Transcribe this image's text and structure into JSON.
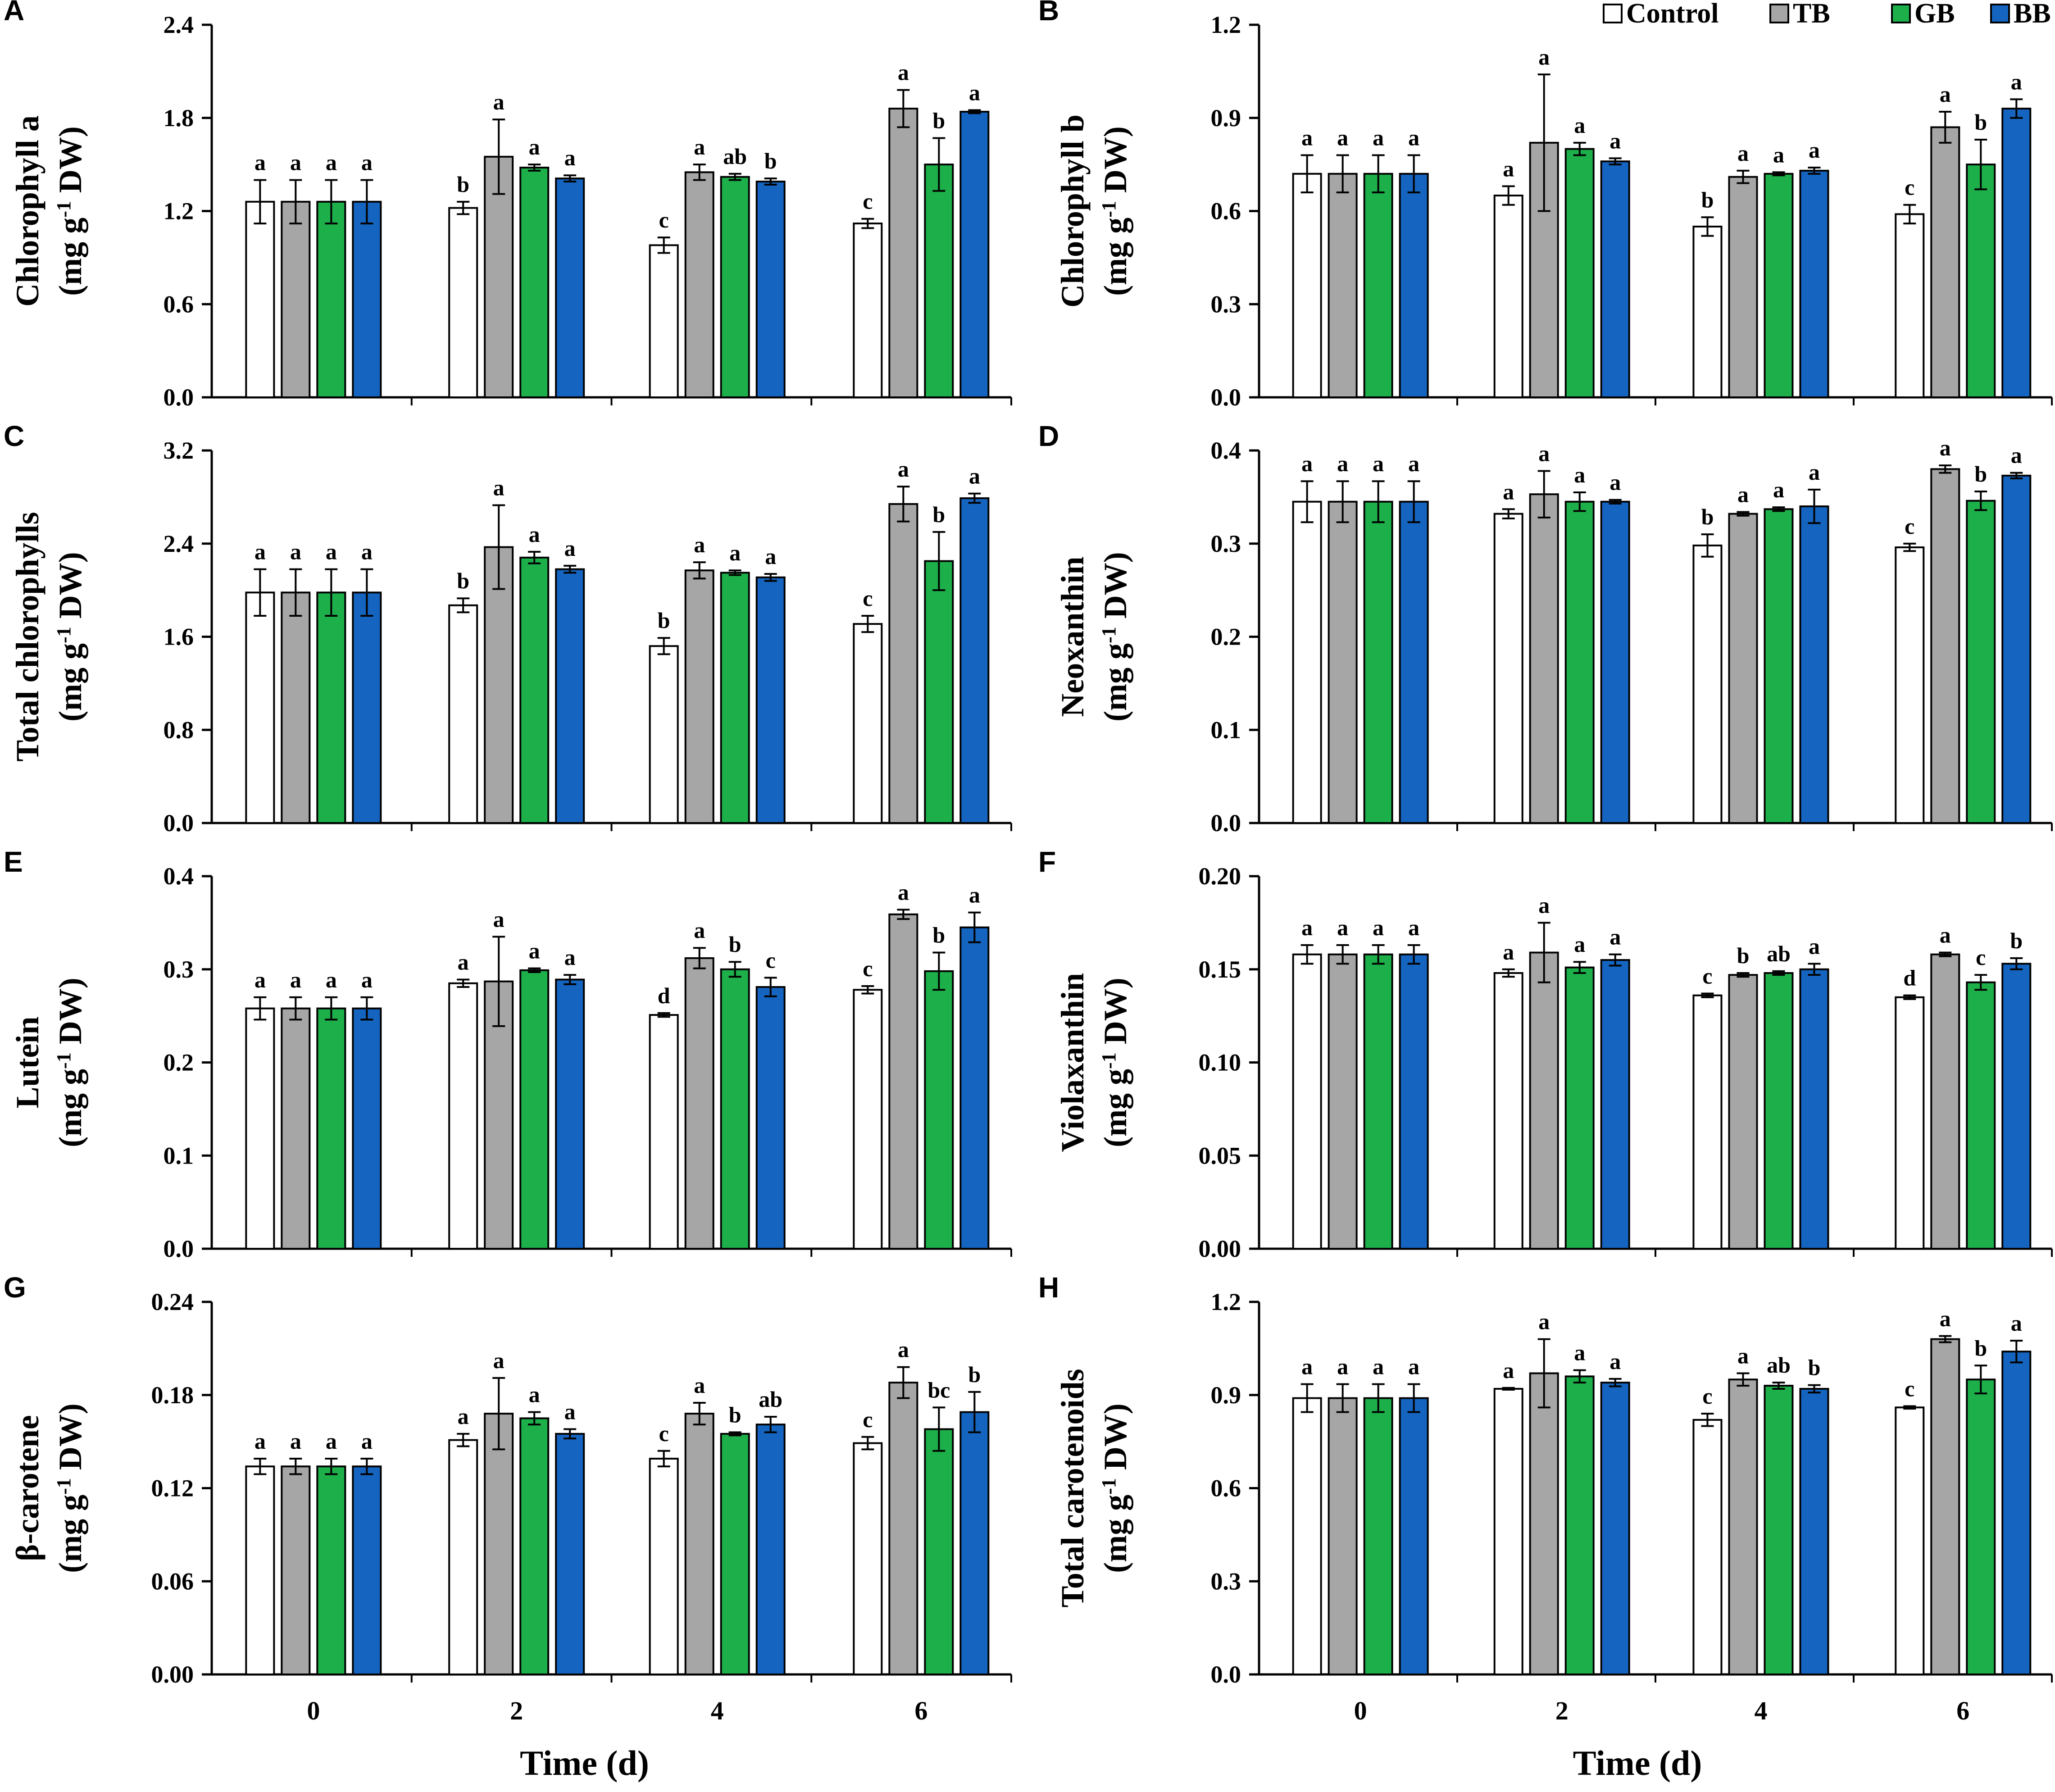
{
  "figure": {
    "x_axis_title": "Time (d)",
    "x_categories": [
      "0",
      "2",
      "4",
      "6"
    ]
  },
  "legend": [
    {
      "name": "Control",
      "color": "#ffffff"
    },
    {
      "name": "TB",
      "color": "#a6a6a6"
    },
    {
      "name": "GB",
      "color": "#1db04a"
    },
    {
      "name": "BB",
      "color": "#1565c0"
    }
  ],
  "chart_data": [
    {
      "type": "bar",
      "panel": "A",
      "ylabel_line1": "Chlorophyll a",
      "ylabel_line2": "(mg g",
      "ylabel_sup": "-1",
      "ylabel_line2_end": " DW)",
      "categories": [
        "0",
        "2",
        "4",
        "6"
      ],
      "ylim": [
        0,
        2.4
      ],
      "yticks": [
        "0.0",
        "0.6",
        "1.2",
        "1.8",
        "2.4"
      ],
      "series": [
        {
          "name": "Control",
          "values": [
            1.26,
            1.22,
            0.98,
            1.12
          ],
          "errors": [
            0.14,
            0.04,
            0.05,
            0.03
          ],
          "labels": [
            "a",
            "b",
            "c",
            "c"
          ]
        },
        {
          "name": "TB",
          "values": [
            1.26,
            1.55,
            1.45,
            1.86
          ],
          "errors": [
            0.14,
            0.24,
            0.05,
            0.12
          ],
          "labels": [
            "a",
            "a",
            "a",
            "a"
          ]
        },
        {
          "name": "GB",
          "values": [
            1.26,
            1.48,
            1.42,
            1.5
          ],
          "errors": [
            0.14,
            0.02,
            0.02,
            0.17
          ],
          "labels": [
            "a",
            "a",
            "ab",
            "b"
          ]
        },
        {
          "name": "BB",
          "values": [
            1.26,
            1.41,
            1.39,
            1.84
          ],
          "errors": [
            0.14,
            0.02,
            0.02,
            0.01
          ],
          "labels": [
            "a",
            "a",
            "b",
            "a"
          ]
        }
      ]
    },
    {
      "type": "bar",
      "panel": "B",
      "ylabel_line1": "Chlorophyll b",
      "ylabel_line2": "(mg g",
      "ylabel_sup": "-1",
      "ylabel_line2_end": " DW)",
      "categories": [
        "0",
        "2",
        "4",
        "6"
      ],
      "ylim": [
        0,
        1.2
      ],
      "yticks": [
        "0.0",
        "0.3",
        "0.6",
        "0.9",
        "1.2"
      ],
      "series": [
        {
          "name": "Control",
          "values": [
            0.72,
            0.65,
            0.55,
            0.59
          ],
          "errors": [
            0.06,
            0.03,
            0.03,
            0.03
          ],
          "labels": [
            "a",
            "a",
            "b",
            "c"
          ]
        },
        {
          "name": "TB",
          "values": [
            0.72,
            0.82,
            0.71,
            0.87
          ],
          "errors": [
            0.06,
            0.22,
            0.02,
            0.05
          ],
          "labels": [
            "a",
            "a",
            "a",
            "a"
          ]
        },
        {
          "name": "GB",
          "values": [
            0.72,
            0.8,
            0.72,
            0.75
          ],
          "errors": [
            0.06,
            0.02,
            0.005,
            0.08
          ],
          "labels": [
            "a",
            "a",
            "a",
            "b"
          ]
        },
        {
          "name": "BB",
          "values": [
            0.72,
            0.76,
            0.73,
            0.93
          ],
          "errors": [
            0.06,
            0.01,
            0.01,
            0.03
          ],
          "labels": [
            "a",
            "a",
            "a",
            "a"
          ]
        }
      ]
    },
    {
      "type": "bar",
      "panel": "C",
      "ylabel_line1": "Total chlorophylls",
      "ylabel_line2": "(mg g",
      "ylabel_sup": "-1",
      "ylabel_line2_end": " DW)",
      "categories": [
        "0",
        "2",
        "4",
        "6"
      ],
      "ylim": [
        0,
        3.2
      ],
      "yticks": [
        "0.0",
        "0.8",
        "1.6",
        "2.4",
        "3.2"
      ],
      "series": [
        {
          "name": "Control",
          "values": [
            1.98,
            1.87,
            1.52,
            1.71
          ],
          "errors": [
            0.2,
            0.06,
            0.07,
            0.07
          ],
          "labels": [
            "a",
            "b",
            "b",
            "c"
          ]
        },
        {
          "name": "TB",
          "values": [
            1.98,
            2.37,
            2.17,
            2.74
          ],
          "errors": [
            0.2,
            0.36,
            0.07,
            0.15
          ],
          "labels": [
            "a",
            "a",
            "a",
            "a"
          ]
        },
        {
          "name": "GB",
          "values": [
            1.98,
            2.28,
            2.15,
            2.25
          ],
          "errors": [
            0.2,
            0.05,
            0.02,
            0.25
          ],
          "labels": [
            "a",
            "a",
            "a",
            "b"
          ]
        },
        {
          "name": "BB",
          "values": [
            1.98,
            2.18,
            2.11,
            2.79
          ],
          "errors": [
            0.2,
            0.03,
            0.03,
            0.04
          ],
          "labels": [
            "a",
            "a",
            "a",
            "a"
          ]
        }
      ]
    },
    {
      "type": "bar",
      "panel": "D",
      "ylabel_line1": "Neoxanthin",
      "ylabel_line2": "(mg g",
      "ylabel_sup": "-1",
      "ylabel_line2_end": " DW)",
      "categories": [
        "0",
        "2",
        "4",
        "6"
      ],
      "ylim": [
        0,
        0.4
      ],
      "yticks": [
        "0.0",
        "0.1",
        "0.2",
        "0.3",
        "0.4"
      ],
      "series": [
        {
          "name": "Control",
          "values": [
            0.345,
            0.332,
            0.298,
            0.296
          ],
          "errors": [
            0.022,
            0.005,
            0.012,
            0.004
          ],
          "labels": [
            "a",
            "a",
            "b",
            "c"
          ]
        },
        {
          "name": "TB",
          "values": [
            0.345,
            0.353,
            0.332,
            0.38
          ],
          "errors": [
            0.022,
            0.025,
            0.002,
            0.004
          ],
          "labels": [
            "a",
            "a",
            "a",
            "a"
          ]
        },
        {
          "name": "GB",
          "values": [
            0.345,
            0.345,
            0.337,
            0.346
          ],
          "errors": [
            0.022,
            0.01,
            0.002,
            0.01
          ],
          "labels": [
            "a",
            "a",
            "a",
            "b"
          ]
        },
        {
          "name": "BB",
          "values": [
            0.345,
            0.345,
            0.34,
            0.373
          ],
          "errors": [
            0.022,
            0.002,
            0.018,
            0.003
          ],
          "labels": [
            "a",
            "a",
            "a",
            "a"
          ]
        }
      ]
    },
    {
      "type": "bar",
      "panel": "E",
      "ylabel_line1": "Lutein",
      "ylabel_line2": "(mg g",
      "ylabel_sup": "-1",
      "ylabel_line2_end": " DW)",
      "categories": [
        "0",
        "2",
        "4",
        "6"
      ],
      "ylim": [
        0,
        0.4
      ],
      "yticks": [
        "0.0",
        "0.1",
        "0.2",
        "0.3",
        "0.4"
      ],
      "series": [
        {
          "name": "Control",
          "values": [
            0.258,
            0.285,
            0.251,
            0.278
          ],
          "errors": [
            0.012,
            0.004,
            0.002,
            0.004
          ],
          "labels": [
            "a",
            "a",
            "d",
            "c"
          ]
        },
        {
          "name": "TB",
          "values": [
            0.258,
            0.287,
            0.312,
            0.359
          ],
          "errors": [
            0.012,
            0.048,
            0.011,
            0.005
          ],
          "labels": [
            "a",
            "a",
            "a",
            "a"
          ]
        },
        {
          "name": "GB",
          "values": [
            0.258,
            0.299,
            0.3,
            0.298
          ],
          "errors": [
            0.012,
            0.002,
            0.008,
            0.02
          ],
          "labels": [
            "a",
            "a",
            "b",
            "b"
          ]
        },
        {
          "name": "BB",
          "values": [
            0.258,
            0.289,
            0.281,
            0.345
          ],
          "errors": [
            0.012,
            0.005,
            0.01,
            0.016
          ],
          "labels": [
            "a",
            "a",
            "c",
            "a"
          ]
        }
      ]
    },
    {
      "type": "bar",
      "panel": "F",
      "ylabel_line1": "Violaxanthin",
      "ylabel_line2": "(mg g",
      "ylabel_sup": "-1",
      "ylabel_line2_end": " DW)",
      "categories": [
        "0",
        "2",
        "4",
        "6"
      ],
      "ylim": [
        0,
        0.2
      ],
      "yticks": [
        "0.00",
        "0.05",
        "0.10",
        "0.15",
        "0.20"
      ],
      "series": [
        {
          "name": "Control",
          "values": [
            0.158,
            0.148,
            0.136,
            0.135
          ],
          "errors": [
            0.005,
            0.002,
            0.001,
            0.001
          ],
          "labels": [
            "a",
            "a",
            "c",
            "d"
          ]
        },
        {
          "name": "TB",
          "values": [
            0.158,
            0.159,
            0.147,
            0.158
          ],
          "errors": [
            0.005,
            0.016,
            0.001,
            0.001
          ],
          "labels": [
            "a",
            "a",
            "b",
            "a"
          ]
        },
        {
          "name": "GB",
          "values": [
            0.158,
            0.151,
            0.148,
            0.143
          ],
          "errors": [
            0.005,
            0.003,
            0.001,
            0.004
          ],
          "labels": [
            "a",
            "a",
            "ab",
            "c"
          ]
        },
        {
          "name": "BB",
          "values": [
            0.158,
            0.155,
            0.15,
            0.153
          ],
          "errors": [
            0.005,
            0.003,
            0.003,
            0.003
          ],
          "labels": [
            "a",
            "a",
            "a",
            "b"
          ]
        }
      ]
    },
    {
      "type": "bar",
      "panel": "G",
      "ylabel_line1": "β-carotene",
      "ylabel_line2": "(mg g",
      "ylabel_sup": "-1",
      "ylabel_line2_end": " DW)",
      "categories": [
        "0",
        "2",
        "4",
        "6"
      ],
      "ylim": [
        0,
        0.24
      ],
      "yticks": [
        "0.00",
        "0.06",
        "0.12",
        "0.18",
        "0.24"
      ],
      "series": [
        {
          "name": "Control",
          "values": [
            0.134,
            0.151,
            0.139,
            0.149
          ],
          "errors": [
            0.005,
            0.004,
            0.005,
            0.004
          ],
          "labels": [
            "a",
            "a",
            "c",
            "c"
          ]
        },
        {
          "name": "TB",
          "values": [
            0.134,
            0.168,
            0.168,
            0.188
          ],
          "errors": [
            0.005,
            0.023,
            0.007,
            0.01
          ],
          "labels": [
            "a",
            "a",
            "a",
            "a"
          ]
        },
        {
          "name": "GB",
          "values": [
            0.134,
            0.165,
            0.155,
            0.158
          ],
          "errors": [
            0.005,
            0.004,
            0.001,
            0.014
          ],
          "labels": [
            "a",
            "a",
            "b",
            "bc"
          ]
        },
        {
          "name": "BB",
          "values": [
            0.134,
            0.155,
            0.161,
            0.169
          ],
          "errors": [
            0.005,
            0.003,
            0.005,
            0.013
          ],
          "labels": [
            "a",
            "a",
            "ab",
            "b"
          ]
        }
      ]
    },
    {
      "type": "bar",
      "panel": "H",
      "ylabel_line1": "Total carotenoids",
      "ylabel_line2": "(mg g",
      "ylabel_sup": "-1",
      "ylabel_line2_end": " DW)",
      "categories": [
        "0",
        "2",
        "4",
        "6"
      ],
      "ylim": [
        0,
        1.2
      ],
      "yticks": [
        "0.0",
        "0.3",
        "0.6",
        "0.9",
        "1.2"
      ],
      "series": [
        {
          "name": "Control",
          "values": [
            0.89,
            0.92,
            0.82,
            0.86
          ],
          "errors": [
            0.045,
            0.003,
            0.02,
            0.004
          ],
          "labels": [
            "a",
            "a",
            "c",
            "c"
          ]
        },
        {
          "name": "TB",
          "values": [
            0.89,
            0.97,
            0.95,
            1.08
          ],
          "errors": [
            0.045,
            0.11,
            0.02,
            0.01
          ],
          "labels": [
            "a",
            "a",
            "a",
            "a"
          ]
        },
        {
          "name": "GB",
          "values": [
            0.89,
            0.96,
            0.93,
            0.95
          ],
          "errors": [
            0.045,
            0.02,
            0.01,
            0.045
          ],
          "labels": [
            "a",
            "a",
            "ab",
            "b"
          ]
        },
        {
          "name": "BB",
          "values": [
            0.89,
            0.94,
            0.92,
            1.04
          ],
          "errors": [
            0.045,
            0.012,
            0.012,
            0.035
          ],
          "labels": [
            "a",
            "a",
            "b",
            "a"
          ]
        }
      ]
    }
  ]
}
